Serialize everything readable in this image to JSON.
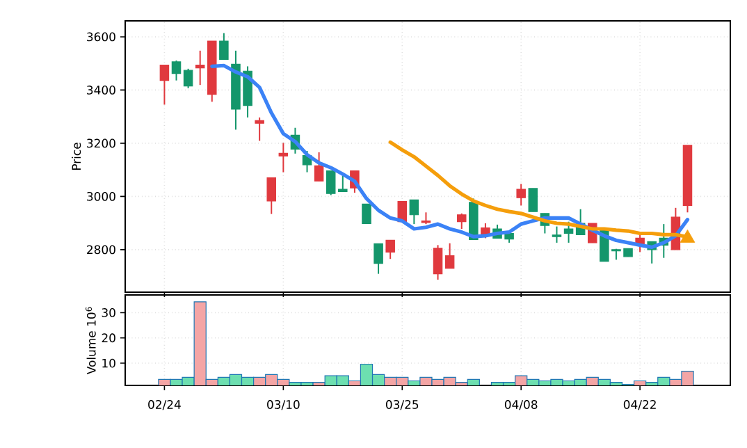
{
  "chart_data": [
    {
      "type": "candlestick",
      "ylabel": "Price",
      "categories": [
        null,
        null,
        null,
        null,
        null,
        null,
        null,
        null,
        null,
        null,
        null,
        null,
        null,
        null,
        null,
        null,
        null,
        null,
        null,
        null,
        null,
        null,
        null,
        null,
        null,
        null,
        null,
        null,
        null,
        null,
        null,
        null,
        null,
        null,
        null,
        null,
        null,
        null,
        null,
        null,
        null,
        null,
        null,
        null,
        null
      ],
      "series": [
        {
          "type": "candlestick",
          "colors": [
            "#e0393e",
            "#14966b",
            "#14966b",
            "#e0393e",
            "#e0393e",
            "#14966b",
            "#14966b",
            "#14966b",
            "#e0393e",
            "#e0393e",
            "#e0393e",
            "#14966b",
            "#14966b",
            "#e0393e",
            "#14966b",
            "#14966b",
            "#e0393e",
            "#14966b",
            "#14966b",
            "#e0393e",
            "#e0393e",
            "#14966b",
            "#e0393e",
            "#e0393e",
            "#e0393e",
            "#e0393e",
            "#14966b",
            "#e0393e",
            "#14966b",
            "#14966b",
            "#e0393e",
            "#14966b",
            "#14966b",
            "#14966b",
            "#14966b",
            "#14966b",
            "#e0393e",
            "#14966b",
            "#14966b",
            "#14966b",
            "#e0393e",
            "#14966b",
            "#14966b",
            "#e0393e",
            "#e0393e"
          ],
          "ohlc": [
            [
              3494,
              3494,
              3345,
              3436
            ],
            [
              3462,
              3511,
              3436,
              3506
            ],
            [
              3415,
              3480,
              3407,
              3474
            ],
            [
              3494,
              3548,
              3419,
              3483
            ],
            [
              3584,
              3584,
              3356,
              3384
            ],
            [
              3515,
              3614,
              3515,
              3584
            ],
            [
              3328,
              3548,
              3251,
              3497
            ],
            [
              3342,
              3489,
              3297,
              3471
            ],
            [
              3285,
              3297,
              3209,
              3275
            ],
            [
              3070,
              3070,
              2934,
              2983
            ],
            [
              3162,
              3201,
              3091,
              3152
            ],
            [
              3178,
              3258,
              3161,
              3230
            ],
            [
              3119,
              3171,
              3091,
              3154
            ],
            [
              3115,
              3166,
              3058,
              3058
            ],
            [
              3011,
              3096,
              3005,
              3096
            ],
            [
              3018,
              3088,
              3018,
              3027
            ],
            [
              3096,
              3096,
              3014,
              3032
            ],
            [
              2898,
              2971,
              2898,
              2971
            ],
            [
              2748,
              2822,
              2709,
              2822
            ],
            [
              2835,
              2835,
              2765,
              2791
            ],
            [
              2981,
              2981,
              2905,
              2905
            ],
            [
              2931,
              2987,
              2896,
              2987
            ],
            [
              2908,
              2940,
              2896,
              2902
            ],
            [
              2805,
              2817,
              2687,
              2709
            ],
            [
              2777,
              2824,
              2730,
              2730
            ],
            [
              2931,
              2936,
              2878,
              2905
            ],
            [
              2838,
              2992,
              2838,
              2978
            ],
            [
              2882,
              2899,
              2843,
              2857
            ],
            [
              2843,
              2894,
              2843,
              2878
            ],
            [
              2840,
              2861,
              2826,
              2861
            ],
            [
              3027,
              3047,
              2966,
              2995
            ],
            [
              2943,
              3030,
              2943,
              3030
            ],
            [
              2891,
              2936,
              2861,
              2936
            ],
            [
              2849,
              2887,
              2826,
              2855
            ],
            [
              2861,
              2905,
              2826,
              2878
            ],
            [
              2856,
              2952,
              2856,
              2899
            ],
            [
              2899,
              2899,
              2826,
              2826
            ],
            [
              2756,
              2882,
              2756,
              2878
            ],
            [
              2795,
              2803,
              2762,
              2800
            ],
            [
              2774,
              2804,
              2774,
              2804
            ],
            [
              2843,
              2856,
              2791,
              2817
            ],
            [
              2800,
              2830,
              2748,
              2830
            ],
            [
              2817,
              2896,
              2769,
              2843
            ],
            [
              2922,
              2957,
              2800,
              2800
            ],
            [
              3192,
              3192,
              2940,
              2966
            ]
          ]
        },
        {
          "type": "line",
          "color": "#3b82f6",
          "values": [
            null,
            null,
            null,
            null,
            3489,
            3492,
            3468,
            3450,
            3410,
            3314,
            3236,
            3206,
            3157,
            3126,
            3108,
            3084,
            3057,
            2992,
            2948,
            2919,
            2908,
            2878,
            2884,
            2896,
            2878,
            2866,
            2849,
            2852,
            2861,
            2866,
            2896,
            2908,
            2919,
            2919,
            2919,
            2896,
            2873,
            2852,
            2835,
            2826,
            2817,
            2809,
            2826,
            2852,
            2913
          ]
        },
        {
          "type": "line",
          "color": "#f59e0b",
          "values": [
            null,
            null,
            null,
            null,
            null,
            null,
            null,
            null,
            null,
            null,
            null,
            null,
            null,
            null,
            null,
            null,
            null,
            null,
            null,
            3204,
            3175,
            3149,
            3114,
            3079,
            3040,
            3009,
            2983,
            2966,
            2952,
            2943,
            2936,
            2922,
            2908,
            2899,
            2896,
            2887,
            2878,
            2878,
            2873,
            2870,
            2861,
            2861,
            2856,
            2856,
            2848
          ]
        },
        {
          "type": "scatter",
          "color": "#f59e0b",
          "marker": "triangle",
          "values": [
            null,
            null,
            null,
            null,
            null,
            null,
            null,
            null,
            null,
            null,
            null,
            null,
            null,
            null,
            null,
            null,
            null,
            null,
            null,
            null,
            null,
            null,
            null,
            null,
            null,
            null,
            null,
            null,
            null,
            null,
            null,
            null,
            null,
            null,
            null,
            null,
            null,
            null,
            null,
            null,
            null,
            null,
            null,
            null,
            2843
          ]
        }
      ],
      "ylim": [
        2640,
        3660
      ],
      "yticks": [
        2800,
        3000,
        3200,
        3400,
        3600
      ],
      "grid": true,
      "tick_labels": "y"
    },
    {
      "type": "bar",
      "ylabel": "Volume  10$^{6}$",
      "categories": [
        "02/24",
        null,
        null,
        null,
        null,
        null,
        null,
        null,
        null,
        null,
        "03/10",
        null,
        null,
        null,
        null,
        null,
        null,
        null,
        null,
        null,
        "03/25",
        null,
        null,
        null,
        null,
        null,
        null,
        null,
        null,
        null,
        "04/08",
        null,
        null,
        null,
        null,
        null,
        null,
        null,
        null,
        null,
        "04/22",
        null,
        null,
        null,
        null
      ],
      "values": [
        3.6,
        3.6,
        4.4,
        34.3,
        3.6,
        4.4,
        5.5,
        4.4,
        4.4,
        5.5,
        3.6,
        2.4,
        2.4,
        2.4,
        5.0,
        5.0,
        3.0,
        9.6,
        5.5,
        4.4,
        4.4,
        3.0,
        4.4,
        3.6,
        4.4,
        2.4,
        3.6,
        null,
        2.4,
        2.4,
        5.0,
        3.6,
        3.0,
        3.6,
        3.0,
        3.6,
        4.4,
        3.6,
        2.4,
        1.6,
        3.0,
        2.4,
        4.4,
        3.6,
        6.8
      ],
      "colors": [
        "#f4a5a5",
        "#6ddfb0",
        "#6ddfb0",
        "#f4a5a5",
        "#f4a5a5",
        "#6ddfb0",
        "#6ddfb0",
        "#6ddfb0",
        "#f4a5a5",
        "#f4a5a5",
        "#f4a5a5",
        "#6ddfb0",
        "#6ddfb0",
        "#f4a5a5",
        "#6ddfb0",
        "#6ddfb0",
        "#f4a5a5",
        "#6ddfb0",
        "#6ddfb0",
        "#f4a5a5",
        "#f4a5a5",
        "#6ddfb0",
        "#f4a5a5",
        "#f4a5a5",
        "#f4a5a5",
        "#f4a5a5",
        "#6ddfb0",
        "#f4a5a5",
        "#6ddfb0",
        "#6ddfb0",
        "#f4a5a5",
        "#6ddfb0",
        "#6ddfb0",
        "#6ddfb0",
        "#6ddfb0",
        "#6ddfb0",
        "#f4a5a5",
        "#6ddfb0",
        "#6ddfb0",
        "#6ddfb0",
        "#f4a5a5",
        "#6ddfb0",
        "#6ddfb0",
        "#f4a5a5",
        "#f4a5a5"
      ],
      "ylim": [
        1.2,
        37
      ],
      "yticks": [
        10,
        20,
        30
      ],
      "grid": true
    }
  ]
}
